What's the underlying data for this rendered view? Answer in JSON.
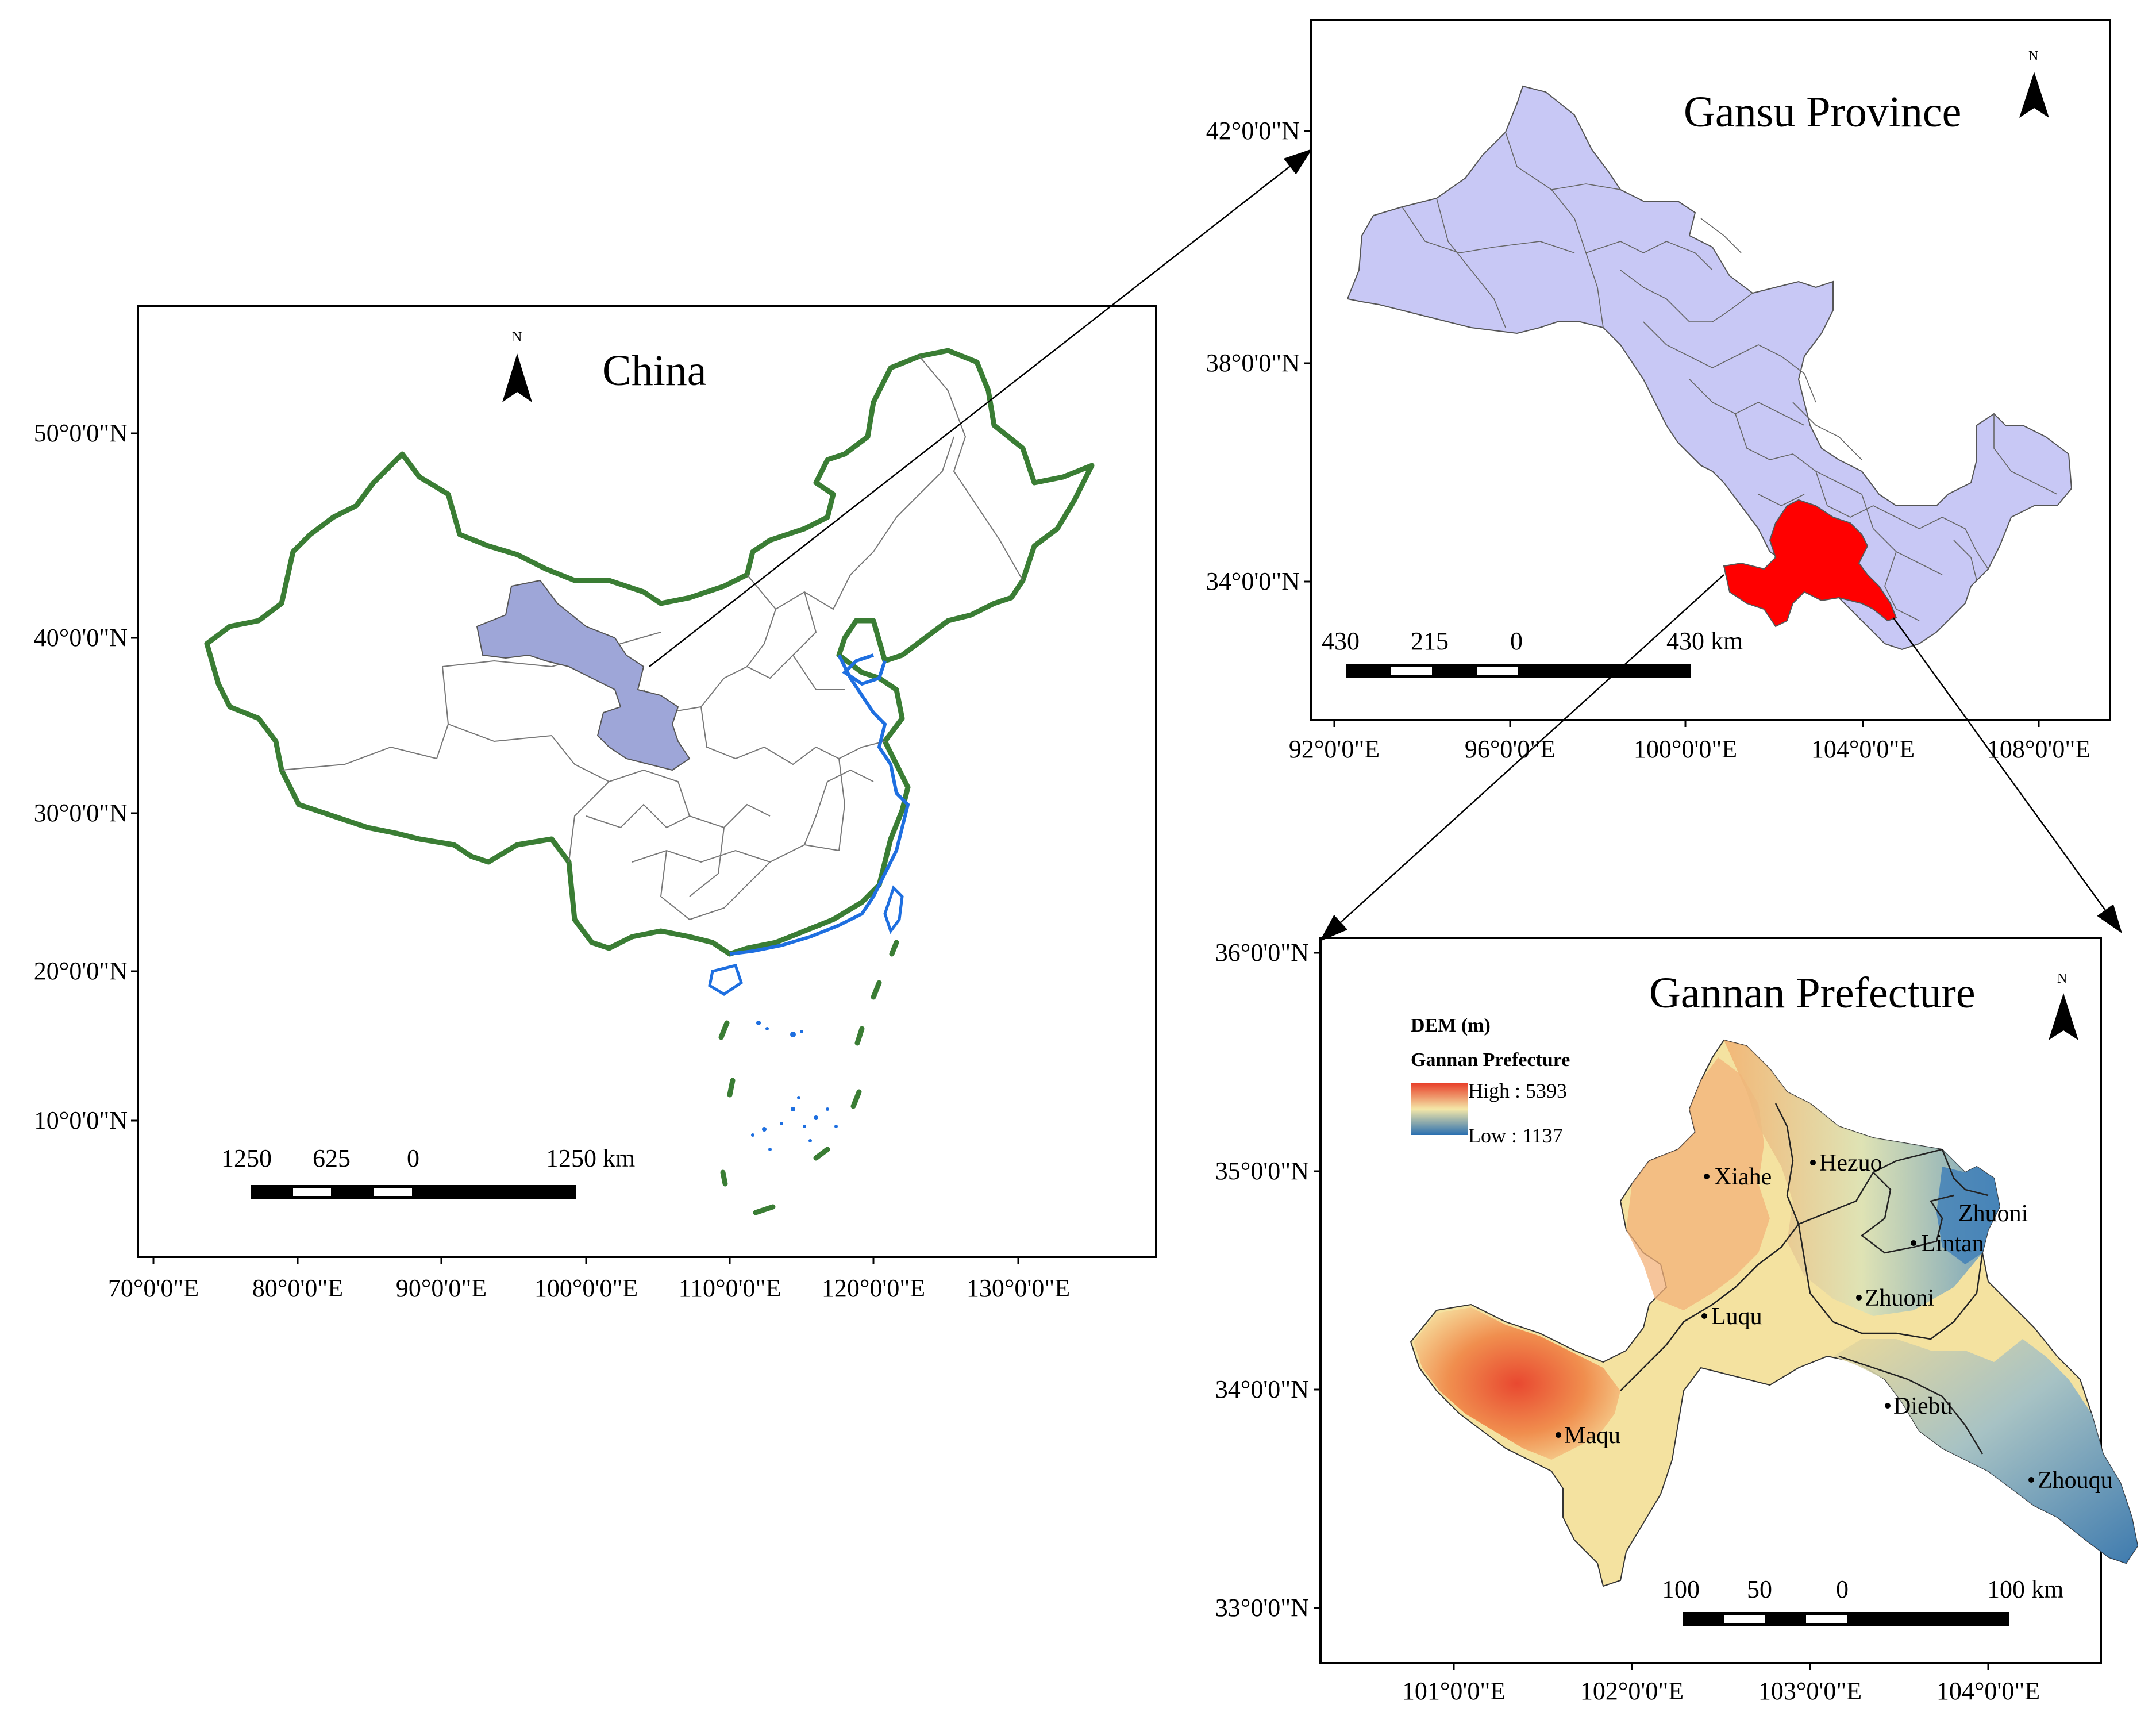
{
  "china": {
    "title": "China",
    "north": "N",
    "lat_ticks": [
      "50°0'0\"N",
      "40°0'0\"N",
      "30°0'0\"N",
      "20°0'0\"N",
      "10°0'0\"N"
    ],
    "lon_ticks": [
      "70°0'0\"E",
      "80°0'0\"E",
      "90°0'0\"E",
      "100°0'0\"E",
      "110°0'0\"E",
      "120°0'0\"E",
      "130°0'0\"E"
    ],
    "scale": [
      "1250",
      "625",
      "0",
      "1250 km"
    ]
  },
  "gansu": {
    "title": "Gansu Province",
    "north": "N",
    "lat_ticks": [
      "42°0'0\"N",
      "38°0'0\"N",
      "34°0'0\"N"
    ],
    "lon_ticks": [
      "92°0'0\"E",
      "96°0'0\"E",
      "100°0'0\"E",
      "104°0'0\"E",
      "108°0'0\"E"
    ],
    "scale": [
      "430",
      "215",
      "0",
      "430 km"
    ]
  },
  "gannan": {
    "title": "Gannan Prefecture",
    "north": "N",
    "lat_ticks": [
      "36°0'0\"N",
      "35°0'0\"N",
      "34°0'0\"N",
      "33°0'0\"N"
    ],
    "lon_ticks": [
      "101°0'0\"E",
      "102°0'0\"E",
      "103°0'0\"E",
      "104°0'0\"E"
    ],
    "scale": [
      "100",
      "50",
      "0",
      "100 km"
    ],
    "legend": {
      "heading": "DEM (m)",
      "layer": "Gannan Prefecture",
      "high": "High : 5393",
      "low": "Low  : 1137"
    },
    "cities": [
      "Xiahe",
      "Hezuo",
      "Zhuoni",
      "Lintan",
      "Zhuoni",
      "Luqu",
      "Diebu",
      "Maqu",
      "Zhouqu"
    ]
  },
  "colors": {
    "china_border": "#3a7d34",
    "coast": "#1e6fe0",
    "gansu_fill_small": "#9ea6d8",
    "gansu_fill": "#c8c8f5",
    "gannan_fill": "#ff0000",
    "dem_high": "#e8402a",
    "dem_mid": "#f4e7a8",
    "dem_low": "#2a6fb0"
  }
}
